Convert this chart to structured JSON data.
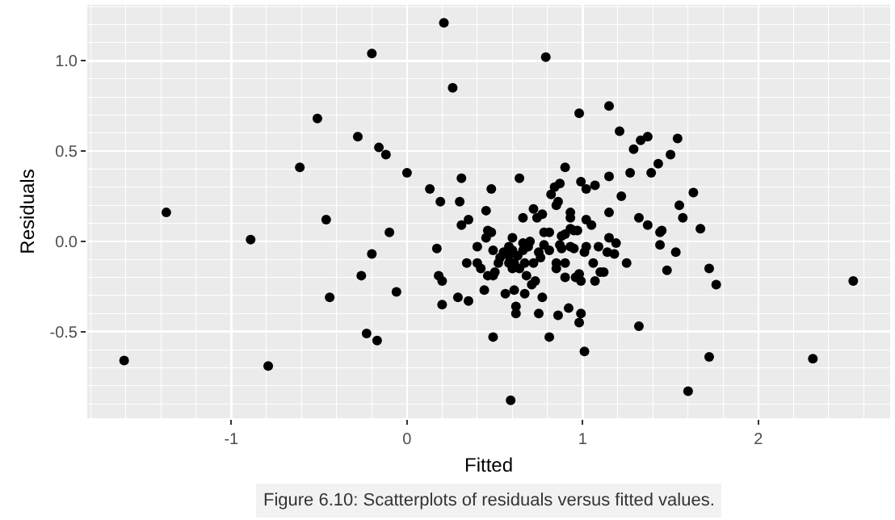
{
  "chart_data": {
    "type": "scatter",
    "xlabel": "Fitted",
    "ylabel": "Residuals",
    "annotations": [
      "Figure 6.10: Scatterplots of residuals versus fitted values."
    ],
    "xlim": [
      -1.82,
      2.75
    ],
    "ylim": [
      -0.98,
      1.31
    ],
    "xticks": [
      -1,
      0,
      1,
      2
    ],
    "yticks": [
      {
        "value": -0.5,
        "label": "-0.5"
      },
      {
        "value": 0,
        "label": "0.0"
      },
      {
        "value": 0.5,
        "label": "0.5"
      },
      {
        "value": 1,
        "label": "1.0"
      }
    ],
    "grid": true,
    "marker": "circle",
    "series": [
      {
        "color": "#000000",
        "x": [
          0.21,
          -0.2,
          -0.51,
          -0.28,
          -0.16,
          -0.12,
          -0.61,
          0.0,
          0.13,
          0.19,
          -1.37,
          -0.46,
          -0.1,
          -0.89,
          -0.2,
          0.17,
          -0.26,
          0.18,
          0.2,
          -0.44,
          -0.06,
          0.2,
          -0.23,
          -0.17,
          -1.61,
          -0.79,
          0.26,
          0.79,
          0.98,
          1.15,
          1.21,
          1.33,
          1.37,
          1.29,
          1.54,
          1.5,
          1.43,
          1.39,
          1.27,
          1.15,
          0.9,
          0.99,
          1.02,
          1.07,
          0.87,
          0.84,
          0.82,
          0.86,
          0.85,
          1.22,
          1.63,
          1.55,
          1.57,
          1.67,
          1.32,
          1.37,
          1.45,
          1.44,
          1.44,
          1.53,
          1.48,
          1.72,
          1.76,
          2.54,
          1.15,
          1.15,
          1.19,
          1.25,
          1.18,
          1.14,
          1.09,
          1.06,
          1.1,
          1.12,
          1.07,
          1.32,
          1.72,
          2.31,
          1.6,
          1.01,
          0.98,
          0.99,
          0.92,
          0.86,
          0.81,
          0.75,
          0.77,
          0.62,
          0.62,
          0.61,
          0.56,
          0.67,
          0.49,
          0.59,
          0.44,
          0.35,
          0.29,
          0.31,
          0.3,
          0.35,
          0.31,
          0.48,
          0.64,
          0.45,
          0.46,
          0.48,
          0.45,
          0.4,
          0.49,
          0.34,
          0.4,
          0.42,
          0.46,
          0.5,
          0.52,
          0.49,
          0.6,
          0.6,
          0.61,
          0.58,
          0.6,
          0.66,
          0.66,
          0.7,
          0.66,
          0.72,
          0.77,
          0.78,
          0.81,
          0.78,
          0.75,
          0.72,
          0.67,
          0.64,
          0.68,
          0.73,
          0.71,
          0.76,
          0.81,
          0.85,
          0.85,
          0.9,
          0.9,
          0.88,
          0.93,
          0.95,
          0.88,
          0.9,
          0.93,
          0.95,
          0.97,
          0.93,
          0.93,
          1.02,
          1.05,
          1.02,
          1.01,
          0.98,
          0.96,
          0.99,
          0.58,
          0.55,
          0.58,
          0.63,
          0.74,
          0.87,
          0.69,
          0.53
        ],
        "values": [
          1.21,
          1.04,
          0.68,
          0.58,
          0.52,
          0.48,
          0.41,
          0.38,
          0.29,
          0.22,
          0.16,
          0.12,
          0.05,
          0.01,
          -0.07,
          -0.04,
          -0.19,
          -0.19,
          -0.22,
          -0.31,
          -0.28,
          -0.35,
          -0.51,
          -0.55,
          -0.66,
          -0.69,
          0.85,
          1.02,
          0.71,
          0.75,
          0.61,
          0.56,
          0.58,
          0.51,
          0.57,
          0.48,
          0.43,
          0.38,
          0.38,
          0.36,
          0.41,
          0.33,
          0.29,
          0.31,
          0.32,
          0.3,
          0.26,
          0.22,
          0.2,
          0.25,
          0.27,
          0.2,
          0.13,
          0.07,
          0.13,
          0.09,
          0.06,
          0.05,
          -0.02,
          -0.06,
          -0.16,
          -0.15,
          -0.24,
          -0.22,
          0.16,
          0.02,
          -0.01,
          -0.12,
          -0.07,
          -0.06,
          -0.03,
          -0.12,
          -0.17,
          -0.17,
          -0.22,
          -0.47,
          -0.64,
          -0.65,
          -0.83,
          -0.61,
          -0.45,
          -0.4,
          -0.37,
          -0.41,
          -0.53,
          -0.4,
          -0.31,
          -0.36,
          -0.4,
          -0.27,
          -0.29,
          -0.29,
          -0.53,
          -0.88,
          -0.27,
          -0.33,
          -0.31,
          0.35,
          0.22,
          0.12,
          0.09,
          0.29,
          0.35,
          0.17,
          0.06,
          0.05,
          0.02,
          -0.03,
          -0.05,
          -0.12,
          -0.12,
          -0.15,
          -0.19,
          -0.17,
          -0.12,
          -0.19,
          0.02,
          -0.05,
          -0.12,
          -0.12,
          -0.15,
          -0.05,
          -0.01,
          0.0,
          0.13,
          0.18,
          0.15,
          0.05,
          0.05,
          -0.02,
          -0.06,
          -0.12,
          -0.12,
          -0.15,
          -0.19,
          -0.22,
          -0.24,
          -0.09,
          -0.05,
          -0.12,
          -0.15,
          -0.12,
          -0.2,
          -0.04,
          -0.03,
          -0.04,
          0.03,
          0.04,
          0.07,
          0.06,
          0.06,
          0.16,
          0.13,
          0.12,
          0.09,
          -0.03,
          -0.06,
          -0.18,
          -0.2,
          -0.22,
          -0.03,
          -0.06,
          -0.08,
          -0.08,
          0.13,
          -0.02,
          -0.03,
          -0.09
        ]
      }
    ]
  }
}
